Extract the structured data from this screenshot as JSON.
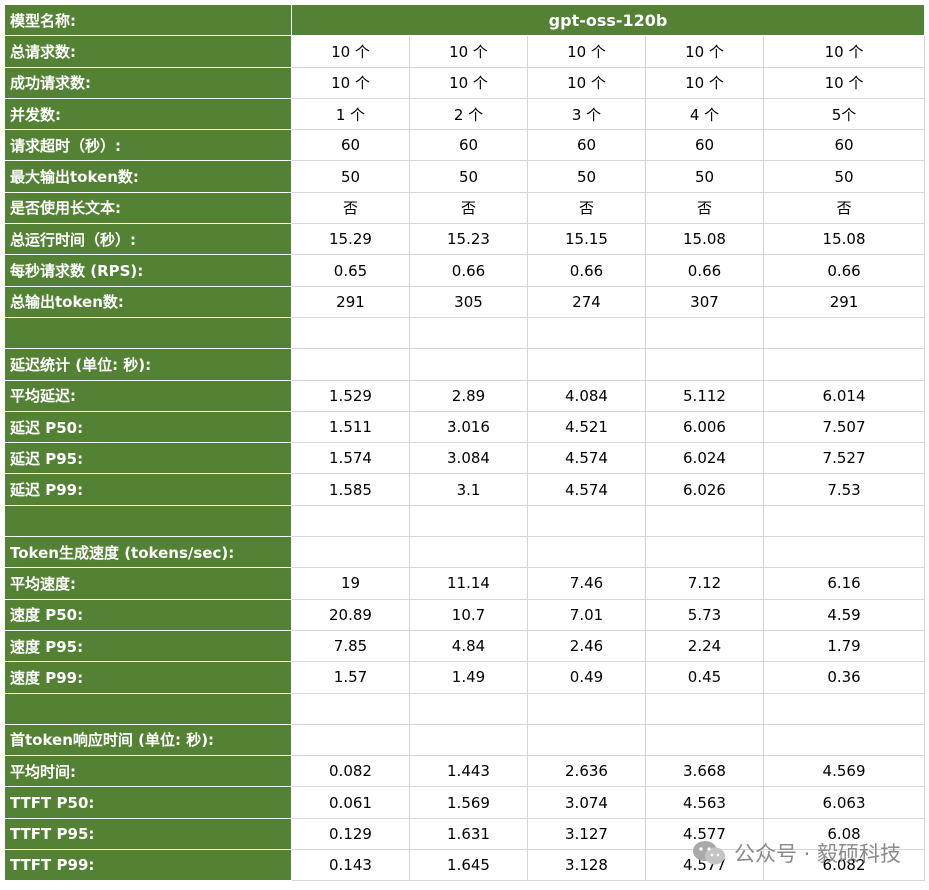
{
  "header": {
    "label": "模型名称:",
    "model": "gpt-oss-120b"
  },
  "rows": [
    {
      "label": "总请求数:",
      "values": [
        "10 个",
        "10 个",
        "10 个",
        "10 个",
        "10 个"
      ]
    },
    {
      "label": "成功请求数:",
      "values": [
        "10 个",
        "10 个",
        "10 个",
        "10 个",
        "10 个"
      ]
    },
    {
      "label": "并发数:",
      "values": [
        "1 个",
        "2 个",
        "3 个",
        "4 个",
        "5个"
      ]
    },
    {
      "label": "请求超时（秒）:",
      "values": [
        "60",
        "60",
        "60",
        "60",
        "60"
      ]
    },
    {
      "label": "最大输出token数:",
      "values": [
        "50",
        "50",
        "50",
        "50",
        "50"
      ]
    },
    {
      "label": "是否使用长文本:",
      "values": [
        "否",
        "否",
        "否",
        "否",
        "否"
      ]
    },
    {
      "label": "总运行时间（秒）:",
      "values": [
        "15.29",
        "15.23",
        "15.15",
        "15.08",
        "15.08"
      ]
    },
    {
      "label": "每秒请求数 (RPS):",
      "values": [
        "0.65",
        "0.66",
        "0.66",
        "0.66",
        "0.66"
      ]
    },
    {
      "label": "总输出token数:",
      "values": [
        "291",
        "305",
        "274",
        "307",
        "291"
      ]
    },
    {
      "label": "",
      "values": [
        "",
        "",
        "",
        "",
        ""
      ]
    },
    {
      "label": "延迟统计 (单位: 秒):",
      "values": [
        "",
        "",
        "",
        "",
        ""
      ]
    },
    {
      "label": "平均延迟:",
      "values": [
        "1.529",
        "2.89",
        "4.084",
        "5.112",
        "6.014"
      ]
    },
    {
      "label": "延迟 P50:",
      "values": [
        "1.511",
        "3.016",
        "4.521",
        "6.006",
        "7.507"
      ]
    },
    {
      "label": "延迟 P95:",
      "values": [
        "1.574",
        "3.084",
        "4.574",
        "6.024",
        "7.527"
      ]
    },
    {
      "label": "延迟 P99:",
      "values": [
        "1.585",
        "3.1",
        "4.574",
        "6.026",
        "7.53"
      ]
    },
    {
      "label": "",
      "values": [
        "",
        "",
        "",
        "",
        ""
      ]
    },
    {
      "label": "Token生成速度 (tokens/sec):",
      "values": [
        "",
        "",
        "",
        "",
        ""
      ]
    },
    {
      "label": "平均速度:",
      "values": [
        "19",
        "11.14",
        "7.46",
        "7.12",
        "6.16"
      ]
    },
    {
      "label": "速度 P50:",
      "values": [
        "20.89",
        "10.7",
        "7.01",
        "5.73",
        "4.59"
      ]
    },
    {
      "label": "速度 P95:",
      "values": [
        "7.85",
        "4.84",
        "2.46",
        "2.24",
        "1.79"
      ]
    },
    {
      "label": "速度 P99:",
      "values": [
        "1.57",
        "1.49",
        "0.49",
        "0.45",
        "0.36"
      ]
    },
    {
      "label": "",
      "values": [
        "",
        "",
        "",
        "",
        ""
      ]
    },
    {
      "label": "首token响应时间 (单位: 秒):",
      "values": [
        "",
        "",
        "",
        "",
        ""
      ]
    },
    {
      "label": "平均时间:",
      "values": [
        "0.082",
        "1.443",
        "2.636",
        "3.668",
        "4.569"
      ]
    },
    {
      "label": "TTFT P50:",
      "values": [
        "0.061",
        "1.569",
        "3.074",
        "4.563",
        "6.063"
      ]
    },
    {
      "label": "TTFT P95:",
      "values": [
        "0.129",
        "1.631",
        "3.127",
        "4.577",
        "6.08"
      ]
    },
    {
      "label": "TTFT P99:",
      "values": [
        "0.143",
        "1.645",
        "3.128",
        "4.577",
        "6.082"
      ]
    }
  ],
  "watermark": {
    "text": "公众号 · 毅硕科技",
    "icon": "wechat-icon"
  },
  "colors": {
    "header_bg": "#548235",
    "header_text": "#ffffff",
    "grid": "#d6d6d6"
  }
}
